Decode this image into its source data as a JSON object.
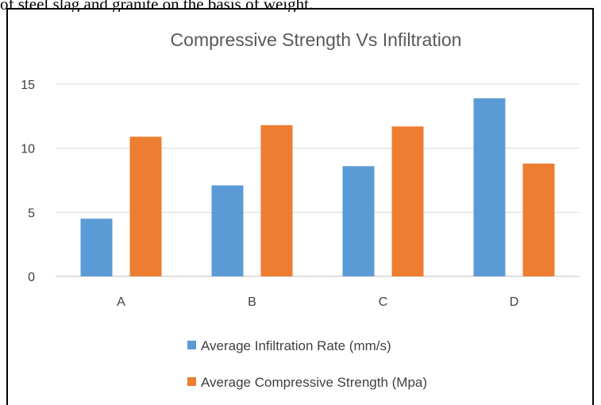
{
  "caption": "of steel slag and granite on the basis of weight.",
  "chart_data": {
    "type": "bar",
    "title": "Compressive Strength Vs Infiltration",
    "xlabel": "",
    "ylabel": "",
    "categories": [
      "A",
      "B",
      "C",
      "D"
    ],
    "series": [
      {
        "name": "Average Infiltration Rate (mm/s)",
        "color": "#5B9BD5",
        "values": [
          4.5,
          7.1,
          8.6,
          13.9
        ]
      },
      {
        "name": "Average Compressive Strength (Mpa)",
        "color": "#ED7D31",
        "values": [
          10.9,
          11.8,
          11.7,
          8.8
        ]
      }
    ],
    "ylim": [
      0,
      15
    ],
    "yticks": [
      0,
      5,
      10,
      15
    ],
    "grid": true,
    "legend_position": "bottom"
  }
}
